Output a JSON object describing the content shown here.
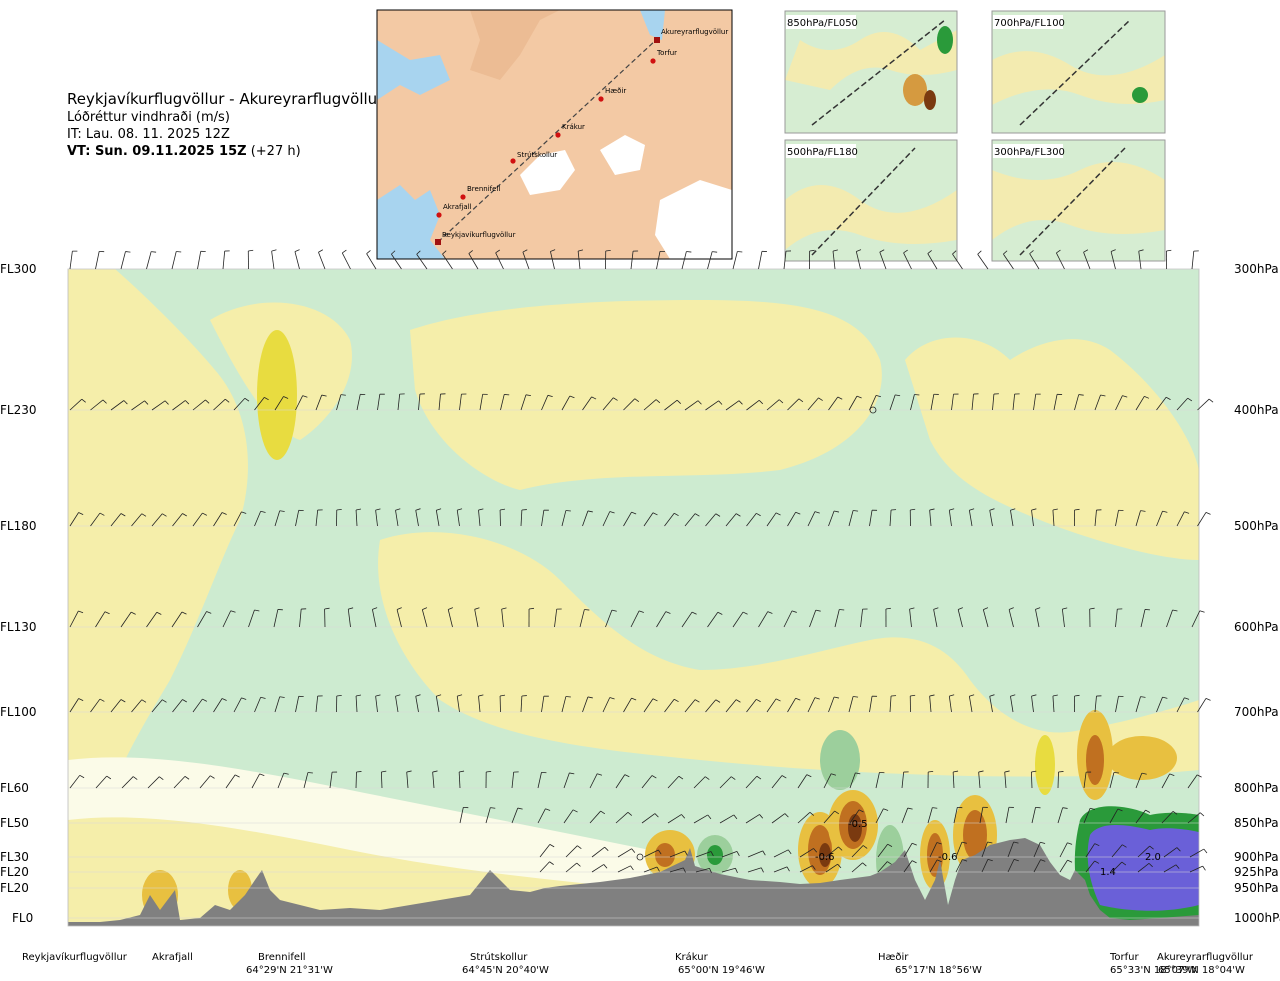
{
  "header": {
    "route_title": "Reykjavíkurflugvöllur - Akureyrarflugvöllur",
    "parameter": "Lóðréttur vindhraði (m/s)",
    "issue_time": "IT: Lau. 08. 11. 2025 12Z",
    "valid_time": "VT: Sun. 09.11.2025 15Z",
    "lead_time": "(+27 h)"
  },
  "route_map": {
    "waypoints": [
      "Akureyrarflugvöllur",
      "Torfur",
      "Hæðir",
      "Krákur",
      "Strútskollur",
      "Brennifell",
      "Akrafjall",
      "Reykjavíkurflugvöllur"
    ]
  },
  "level_panels": [
    {
      "label": "850hPa/FL050"
    },
    {
      "label": "700hPa/FL100"
    },
    {
      "label": "500hPa/FL180"
    },
    {
      "label": "300hPa/FL300"
    }
  ],
  "colors": {
    "strong_down": "#7a3a10",
    "moderate_down": "#c07020",
    "weak_down": "#e8c040",
    "slight_down": "#f5eeaa",
    "neutral": "#fbfbe8",
    "slight_up": "#cdebd0",
    "weak_up": "#9ccf9c",
    "moderate_up": "#2a9a3a",
    "strong_up": "#6a60d8",
    "terrain": "#808080"
  },
  "chart_data": {
    "type": "heatmap",
    "title": "Lóðréttur vindhraði (m/s)",
    "flight_levels": [
      "FL300",
      "FL230",
      "FL180",
      "FL130",
      "FL100",
      "FL60",
      "FL50",
      "FL30",
      "FL20",
      "FL20",
      "FL0"
    ],
    "pressure_levels": [
      "300hPa",
      "400hPa",
      "500hPa",
      "600hPa",
      "700hPa",
      "800hPa",
      "850hPa",
      "900hPa",
      "925hPa",
      "950hPa",
      "1000hPa"
    ],
    "contour_labels": [
      "-0.5",
      "-0.6",
      "-0.6",
      "2.0",
      "1.4"
    ],
    "locations": [
      {
        "name": "Reykjavíkurflugvöllur",
        "coord": ""
      },
      {
        "name": "Akrafjall",
        "coord": ""
      },
      {
        "name": "Brennifell",
        "coord": "64°29'N 21°31'W"
      },
      {
        "name": "Strútskollur",
        "coord": "64°45'N 20°40'W"
      },
      {
        "name": "Krákur",
        "coord": "65°00'N 19°46'W"
      },
      {
        "name": "Hæðir",
        "coord": "65°17'N 18°56'W"
      },
      {
        "name": "Torfur",
        "coord": "65°33'N 18°07'W"
      },
      {
        "name": "Akureyrarflugvöllur",
        "coord": "65°39'N 18°04'W"
      }
    ]
  }
}
